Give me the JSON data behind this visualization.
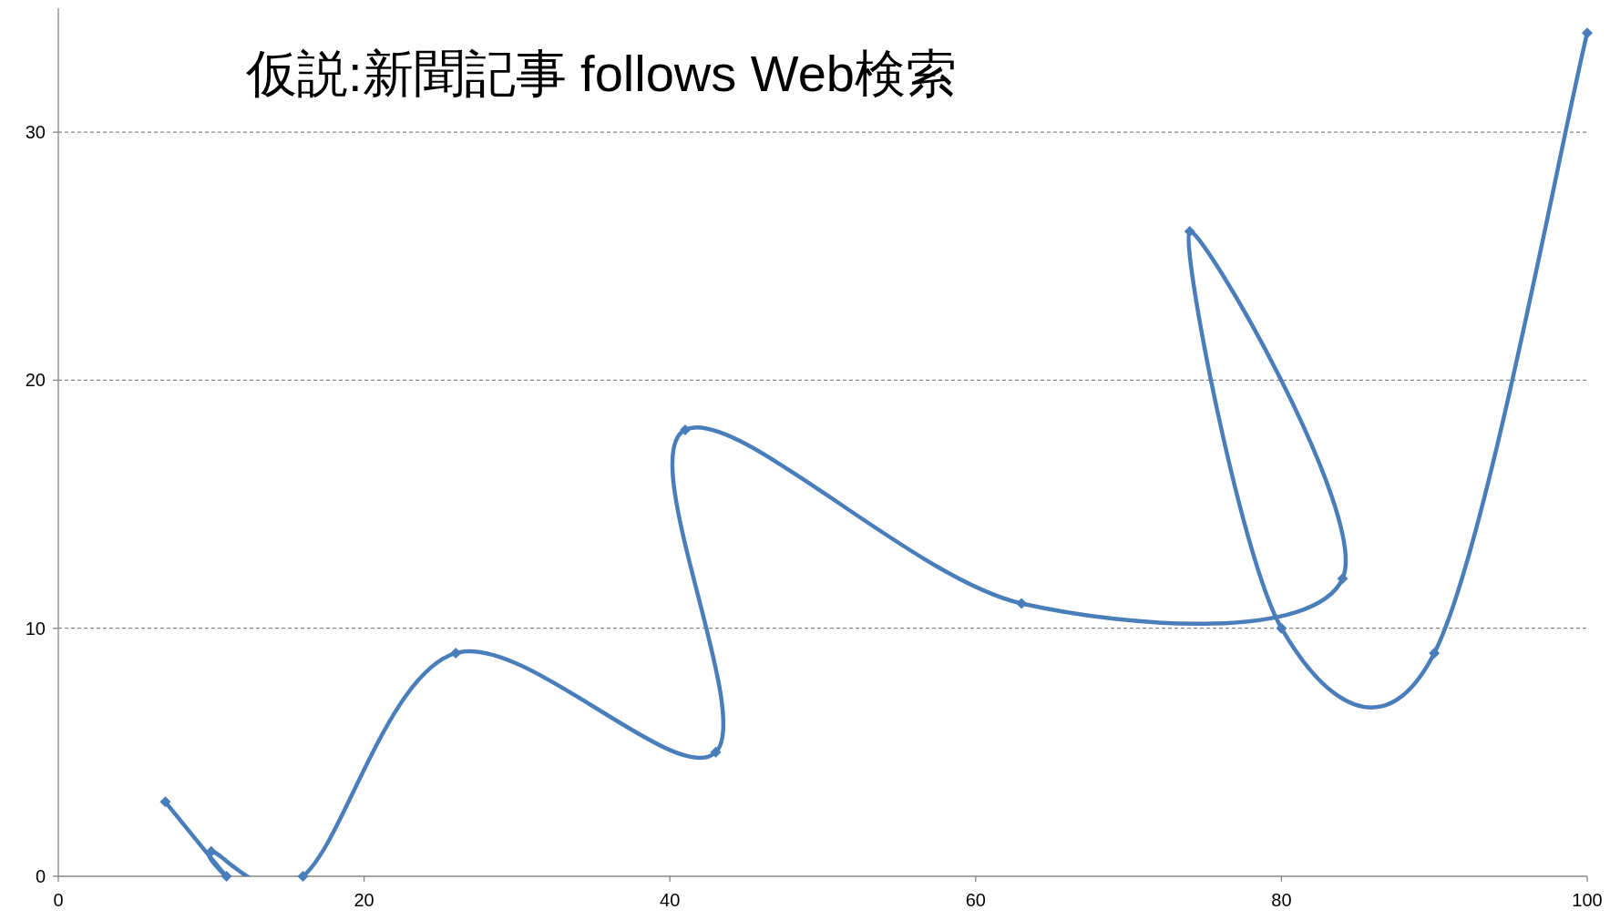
{
  "chart_data": {
    "type": "line",
    "title": "仮説:新聞記事 follows Web検索",
    "x": [
      7,
      11,
      10,
      16,
      26,
      43,
      41,
      63,
      84,
      74,
      80,
      90,
      100
    ],
    "series": [
      {
        "color": "#4a7ebb",
        "values": [
          3,
          0,
          1,
          0,
          9,
          5,
          18,
          11,
          12,
          26,
          10,
          9,
          34
        ]
      }
    ],
    "xlim": [
      0,
      100
    ],
    "xticks": [
      0,
      20,
      40,
      60,
      80,
      100
    ],
    "ylim": [
      0,
      35
    ],
    "yticks": [
      0,
      10,
      20,
      30
    ],
    "grid": "y",
    "marker": "diamond",
    "line_style": "solid"
  }
}
